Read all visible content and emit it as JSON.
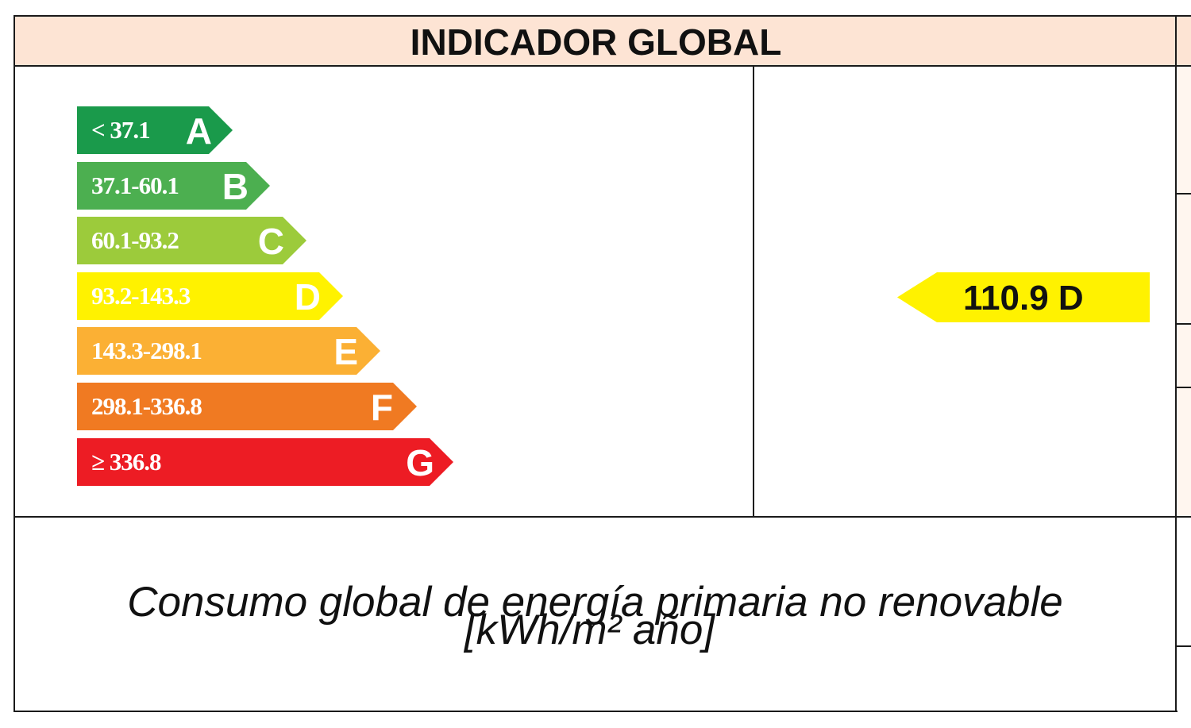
{
  "header": {
    "title": "INDICADOR GLOBAL"
  },
  "scale": {
    "bands": [
      {
        "range": "< 37.1",
        "letter": "A",
        "color": "#1a9a4b"
      },
      {
        "range": "37.1-60.1",
        "letter": "B",
        "color": "#4caf50"
      },
      {
        "range": "60.1-93.2",
        "letter": "C",
        "color": "#9ccb3b"
      },
      {
        "range": "93.2-143.3",
        "letter": "D",
        "color": "#fff200"
      },
      {
        "range": "143.3-298.1",
        "letter": "E",
        "color": "#fbb034"
      },
      {
        "range": "298.1-336.8",
        "letter": "F",
        "color": "#f07a22"
      },
      {
        "range": "≥ 336.8",
        "letter": "G",
        "color": "#ed1c24"
      }
    ]
  },
  "rating": {
    "value": "110.9",
    "letter": "D",
    "color": "#fff200"
  },
  "footer": {
    "line1": "Consumo global de energía primaria no renovable",
    "line2": "[kWh/m² año]"
  }
}
